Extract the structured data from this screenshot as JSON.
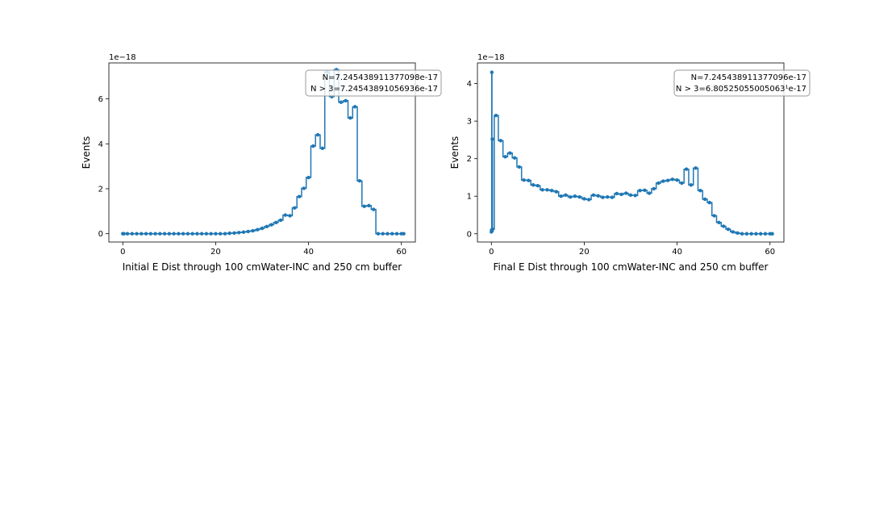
{
  "chart_data": [
    {
      "type": "line",
      "drawstyle": "steps-mid with point markers",
      "xlabel": "Initial E Dist through 100 cmWater-INC and 250 cm buffer",
      "ylabel": "Events",
      "offset_text": "1e−18",
      "xlim": [
        -3,
        63
      ],
      "ylim": [
        -0.37,
        7.6
      ],
      "xticks": [
        0,
        20,
        40,
        60
      ],
      "xtick_labels": [
        "0",
        "20",
        "40",
        "60"
      ],
      "yticks": [
        0,
        2,
        4,
        6
      ],
      "ytick_labels": [
        "0",
        "2",
        "4",
        "6"
      ],
      "grid": false,
      "annotation_lines": [
        "N=7.245438911377098e-17",
        "N > 3=7.24543891056936e-17"
      ],
      "annotation_position": "top-right",
      "color": "#1f77b4",
      "x": [
        0,
        0.25,
        1,
        2,
        3,
        4,
        5,
        6,
        7,
        8,
        9,
        10,
        11,
        12,
        13,
        14,
        15,
        16,
        17,
        18,
        19,
        20,
        21,
        22,
        23,
        24,
        25,
        26,
        27,
        28,
        29,
        30,
        31,
        32,
        33,
        34,
        35,
        36,
        37,
        38,
        39,
        40,
        41,
        42,
        43,
        44,
        45,
        46,
        47,
        48,
        49,
        50,
        51,
        52,
        53,
        54,
        55,
        56,
        57,
        58,
        59,
        60,
        60.5
      ],
      "y": [
        0,
        0,
        0,
        0,
        0,
        0,
        0,
        0,
        0,
        0,
        0,
        0,
        0,
        0,
        0,
        0,
        0,
        0,
        0,
        0,
        0,
        0,
        0,
        0,
        0.02,
        0.03,
        0.05,
        0.07,
        0.1,
        0.13,
        0.18,
        0.24,
        0.32,
        0.4,
        0.5,
        0.6,
        0.83,
        0.8,
        1.15,
        1.65,
        2.02,
        2.5,
        3.9,
        4.4,
        3.8,
        7.2,
        6.1,
        7.3,
        5.85,
        5.92,
        5.15,
        5.65,
        2.35,
        1.22,
        1.25,
        1.08,
        0,
        0,
        0,
        0,
        0,
        0,
        0
      ]
    },
    {
      "type": "line",
      "drawstyle": "steps-mid with point markers",
      "xlabel": "Final E Dist through 100 cmWater-INC and 250 cm buffer",
      "ylabel": "Events",
      "offset_text": "1e−18",
      "xlim": [
        -3,
        63
      ],
      "ylim": [
        -0.22,
        4.55
      ],
      "xticks": [
        0,
        20,
        40,
        60
      ],
      "xtick_labels": [
        "0",
        "20",
        "40",
        "60"
      ],
      "yticks": [
        0,
        1,
        2,
        3,
        4
      ],
      "ytick_labels": [
        "0",
        "1",
        "2",
        "3",
        "4"
      ],
      "grid": false,
      "annotation_lines": [
        "N=7.245438911377096e-17",
        "N > 3=6.80525055005063¹e-17"
      ],
      "annotation_position": "top-right",
      "color": "#1f77b4",
      "x": [
        0,
        0.05,
        0.1,
        0.15,
        0.2,
        0.25,
        1,
        2,
        3,
        4,
        5,
        6,
        7,
        8,
        9,
        10,
        11,
        12,
        13,
        14,
        15,
        16,
        17,
        18,
        19,
        20,
        21,
        22,
        23,
        24,
        25,
        26,
        27,
        28,
        29,
        30,
        31,
        32,
        33,
        34,
        35,
        36,
        37,
        38,
        39,
        40,
        41,
        42,
        43,
        44,
        45,
        46,
        47,
        48,
        49,
        50,
        51,
        52,
        53,
        54,
        55,
        56,
        57,
        58,
        59,
        60,
        60.5
      ],
      "y": [
        0.05,
        0.1,
        4.3,
        0.08,
        2.52,
        0.12,
        3.15,
        2.48,
        2.05,
        2.15,
        2.02,
        1.78,
        1.43,
        1.42,
        1.3,
        1.28,
        1.17,
        1.17,
        1.15,
        1.12,
        1.0,
        1.03,
        0.98,
        1.0,
        0.98,
        0.93,
        0.91,
        1.03,
        1.01,
        0.97,
        0.98,
        0.97,
        1.07,
        1.05,
        1.08,
        1.03,
        1.02,
        1.15,
        1.16,
        1.08,
        1.2,
        1.35,
        1.4,
        1.42,
        1.45,
        1.43,
        1.35,
        1.72,
        1.3,
        1.75,
        1.15,
        0.92,
        0.83,
        0.48,
        0.3,
        0.2,
        0.12,
        0.05,
        0.02,
        0,
        0,
        0,
        0,
        0,
        0,
        0,
        0
      ]
    }
  ]
}
